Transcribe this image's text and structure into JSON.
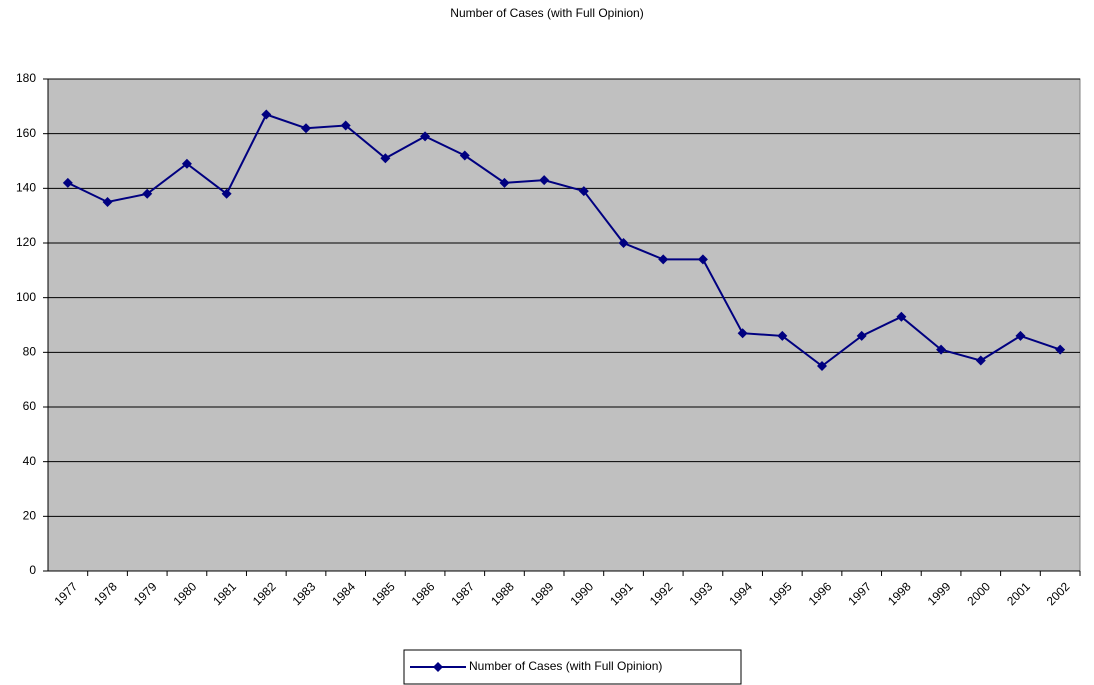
{
  "chart_data": {
    "type": "line",
    "title": "Number of Cases (with Full Opinion)",
    "categories": [
      "1977",
      "1978",
      "1979",
      "1980",
      "1981",
      "1982",
      "1983",
      "1984",
      "1985",
      "1986",
      "1987",
      "1988",
      "1989",
      "1990",
      "1991",
      "1992",
      "1993",
      "1994",
      "1995",
      "1996",
      "1997",
      "1998",
      "1999",
      "2000",
      "2001",
      "2002"
    ],
    "series": [
      {
        "name": "Number of Cases (with Full Opinion)",
        "color": "#000080",
        "values": [
          142,
          135,
          138,
          149,
          138,
          167,
          162,
          163,
          151,
          159,
          152,
          142,
          143,
          139,
          120,
          114,
          114,
          87,
          86,
          75,
          86,
          93,
          81,
          77,
          86,
          81
        ]
      }
    ],
    "ylim": [
      0,
      180
    ],
    "yticks": [
      0,
      20,
      40,
      60,
      80,
      100,
      120,
      140,
      160,
      180
    ],
    "grid": true,
    "legend": "bottom"
  }
}
